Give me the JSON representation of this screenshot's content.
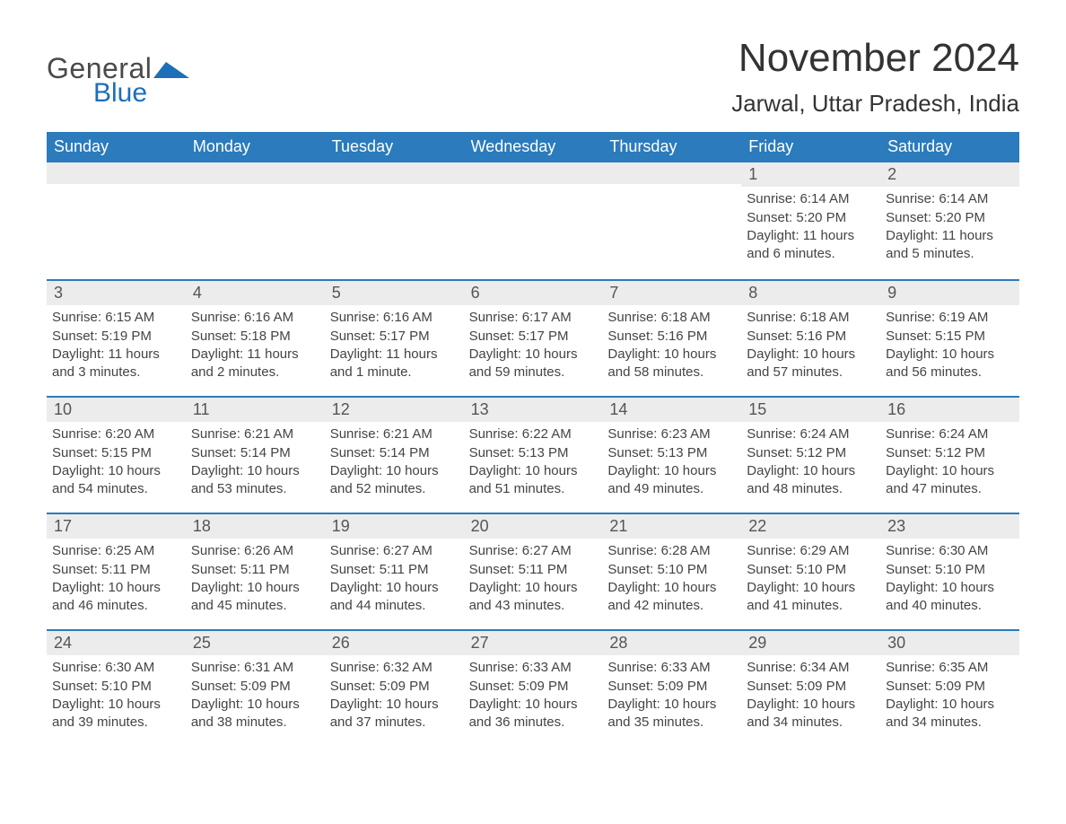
{
  "logo": {
    "general": "General",
    "blue": "Blue"
  },
  "title": "November 2024",
  "location": "Jarwal, Uttar Pradesh, India",
  "colors": {
    "header_bg": "#2b7bbd",
    "header_text": "#ffffff",
    "daynum_bg": "#ececec",
    "text": "#444444",
    "accent": "#1c6fb8"
  },
  "days_of_week": [
    "Sunday",
    "Monday",
    "Tuesday",
    "Wednesday",
    "Thursday",
    "Friday",
    "Saturday"
  ],
  "weeks": [
    [
      {
        "empty": true
      },
      {
        "empty": true
      },
      {
        "empty": true
      },
      {
        "empty": true
      },
      {
        "empty": true
      },
      {
        "n": "1",
        "sunrise": "Sunrise: 6:14 AM",
        "sunset": "Sunset: 5:20 PM",
        "d1": "Daylight: 11 hours",
        "d2": "and 6 minutes."
      },
      {
        "n": "2",
        "sunrise": "Sunrise: 6:14 AM",
        "sunset": "Sunset: 5:20 PM",
        "d1": "Daylight: 11 hours",
        "d2": "and 5 minutes."
      }
    ],
    [
      {
        "n": "3",
        "sunrise": "Sunrise: 6:15 AM",
        "sunset": "Sunset: 5:19 PM",
        "d1": "Daylight: 11 hours",
        "d2": "and 3 minutes."
      },
      {
        "n": "4",
        "sunrise": "Sunrise: 6:16 AM",
        "sunset": "Sunset: 5:18 PM",
        "d1": "Daylight: 11 hours",
        "d2": "and 2 minutes."
      },
      {
        "n": "5",
        "sunrise": "Sunrise: 6:16 AM",
        "sunset": "Sunset: 5:17 PM",
        "d1": "Daylight: 11 hours",
        "d2": "and 1 minute."
      },
      {
        "n": "6",
        "sunrise": "Sunrise: 6:17 AM",
        "sunset": "Sunset: 5:17 PM",
        "d1": "Daylight: 10 hours",
        "d2": "and 59 minutes."
      },
      {
        "n": "7",
        "sunrise": "Sunrise: 6:18 AM",
        "sunset": "Sunset: 5:16 PM",
        "d1": "Daylight: 10 hours",
        "d2": "and 58 minutes."
      },
      {
        "n": "8",
        "sunrise": "Sunrise: 6:18 AM",
        "sunset": "Sunset: 5:16 PM",
        "d1": "Daylight: 10 hours",
        "d2": "and 57 minutes."
      },
      {
        "n": "9",
        "sunrise": "Sunrise: 6:19 AM",
        "sunset": "Sunset: 5:15 PM",
        "d1": "Daylight: 10 hours",
        "d2": "and 56 minutes."
      }
    ],
    [
      {
        "n": "10",
        "sunrise": "Sunrise: 6:20 AM",
        "sunset": "Sunset: 5:15 PM",
        "d1": "Daylight: 10 hours",
        "d2": "and 54 minutes."
      },
      {
        "n": "11",
        "sunrise": "Sunrise: 6:21 AM",
        "sunset": "Sunset: 5:14 PM",
        "d1": "Daylight: 10 hours",
        "d2": "and 53 minutes."
      },
      {
        "n": "12",
        "sunrise": "Sunrise: 6:21 AM",
        "sunset": "Sunset: 5:14 PM",
        "d1": "Daylight: 10 hours",
        "d2": "and 52 minutes."
      },
      {
        "n": "13",
        "sunrise": "Sunrise: 6:22 AM",
        "sunset": "Sunset: 5:13 PM",
        "d1": "Daylight: 10 hours",
        "d2": "and 51 minutes."
      },
      {
        "n": "14",
        "sunrise": "Sunrise: 6:23 AM",
        "sunset": "Sunset: 5:13 PM",
        "d1": "Daylight: 10 hours",
        "d2": "and 49 minutes."
      },
      {
        "n": "15",
        "sunrise": "Sunrise: 6:24 AM",
        "sunset": "Sunset: 5:12 PM",
        "d1": "Daylight: 10 hours",
        "d2": "and 48 minutes."
      },
      {
        "n": "16",
        "sunrise": "Sunrise: 6:24 AM",
        "sunset": "Sunset: 5:12 PM",
        "d1": "Daylight: 10 hours",
        "d2": "and 47 minutes."
      }
    ],
    [
      {
        "n": "17",
        "sunrise": "Sunrise: 6:25 AM",
        "sunset": "Sunset: 5:11 PM",
        "d1": "Daylight: 10 hours",
        "d2": "and 46 minutes."
      },
      {
        "n": "18",
        "sunrise": "Sunrise: 6:26 AM",
        "sunset": "Sunset: 5:11 PM",
        "d1": "Daylight: 10 hours",
        "d2": "and 45 minutes."
      },
      {
        "n": "19",
        "sunrise": "Sunrise: 6:27 AM",
        "sunset": "Sunset: 5:11 PM",
        "d1": "Daylight: 10 hours",
        "d2": "and 44 minutes."
      },
      {
        "n": "20",
        "sunrise": "Sunrise: 6:27 AM",
        "sunset": "Sunset: 5:11 PM",
        "d1": "Daylight: 10 hours",
        "d2": "and 43 minutes."
      },
      {
        "n": "21",
        "sunrise": "Sunrise: 6:28 AM",
        "sunset": "Sunset: 5:10 PM",
        "d1": "Daylight: 10 hours",
        "d2": "and 42 minutes."
      },
      {
        "n": "22",
        "sunrise": "Sunrise: 6:29 AM",
        "sunset": "Sunset: 5:10 PM",
        "d1": "Daylight: 10 hours",
        "d2": "and 41 minutes."
      },
      {
        "n": "23",
        "sunrise": "Sunrise: 6:30 AM",
        "sunset": "Sunset: 5:10 PM",
        "d1": "Daylight: 10 hours",
        "d2": "and 40 minutes."
      }
    ],
    [
      {
        "n": "24",
        "sunrise": "Sunrise: 6:30 AM",
        "sunset": "Sunset: 5:10 PM",
        "d1": "Daylight: 10 hours",
        "d2": "and 39 minutes."
      },
      {
        "n": "25",
        "sunrise": "Sunrise: 6:31 AM",
        "sunset": "Sunset: 5:09 PM",
        "d1": "Daylight: 10 hours",
        "d2": "and 38 minutes."
      },
      {
        "n": "26",
        "sunrise": "Sunrise: 6:32 AM",
        "sunset": "Sunset: 5:09 PM",
        "d1": "Daylight: 10 hours",
        "d2": "and 37 minutes."
      },
      {
        "n": "27",
        "sunrise": "Sunrise: 6:33 AM",
        "sunset": "Sunset: 5:09 PM",
        "d1": "Daylight: 10 hours",
        "d2": "and 36 minutes."
      },
      {
        "n": "28",
        "sunrise": "Sunrise: 6:33 AM",
        "sunset": "Sunset: 5:09 PM",
        "d1": "Daylight: 10 hours",
        "d2": "and 35 minutes."
      },
      {
        "n": "29",
        "sunrise": "Sunrise: 6:34 AM",
        "sunset": "Sunset: 5:09 PM",
        "d1": "Daylight: 10 hours",
        "d2": "and 34 minutes."
      },
      {
        "n": "30",
        "sunrise": "Sunrise: 6:35 AM",
        "sunset": "Sunset: 5:09 PM",
        "d1": "Daylight: 10 hours",
        "d2": "and 34 minutes."
      }
    ]
  ]
}
